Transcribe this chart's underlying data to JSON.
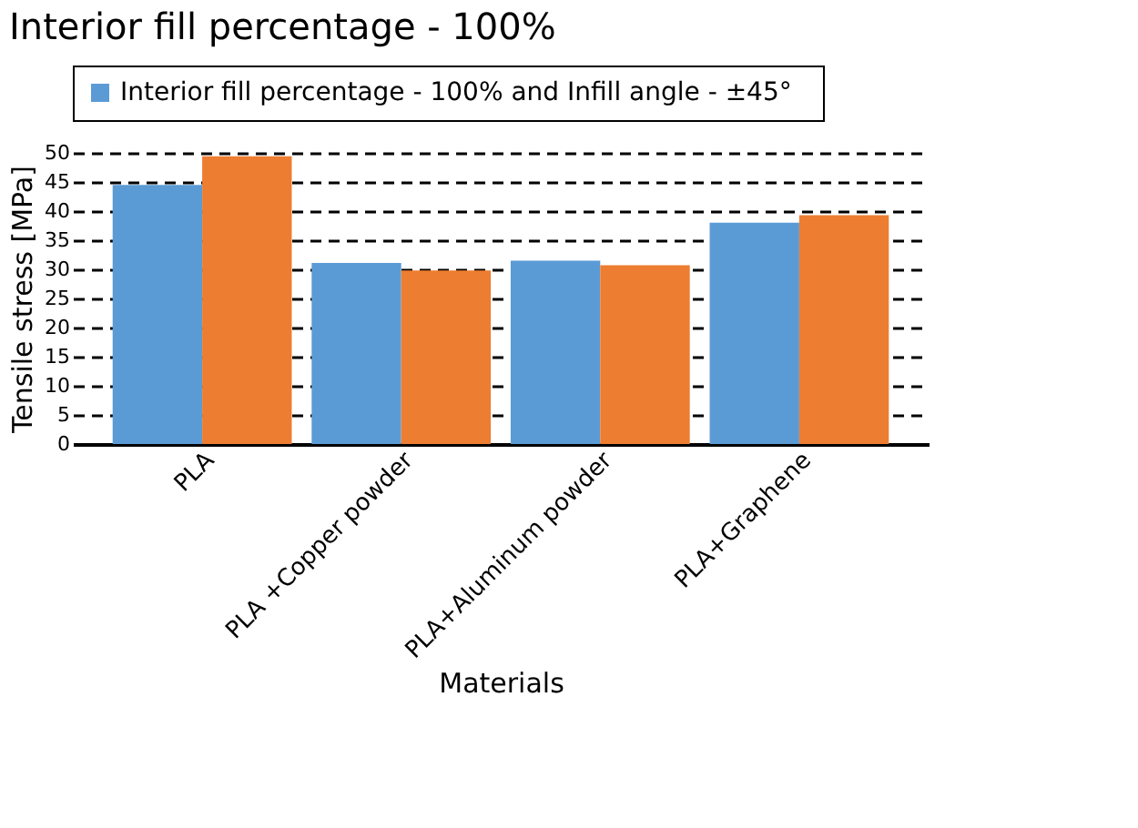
{
  "chart_data": {
    "type": "bar",
    "title": "Interior fill percentage - 100%",
    "xlabel": "Materials",
    "ylabel": "Tensile stress [MPa]",
    "categories": [
      "PLA",
      "PLA +Copper powder",
      "PLA+Aluminum powder",
      "PLA+Graphene"
    ],
    "series": [
      {
        "name": "Interior fill percentage - 100%   and Infill angle - ±45°",
        "color": "#5b9bd5",
        "values": [
          44.5,
          31.1,
          31.5,
          38.0
        ]
      },
      {
        "color": "#ed7d31",
        "values": [
          49.4,
          29.8,
          30.7,
          39.3
        ]
      }
    ],
    "ylim": [
      0,
      50
    ],
    "yticks": [
      0,
      5,
      10,
      15,
      20,
      25,
      30,
      35,
      40,
      45,
      50
    ],
    "grid": "y",
    "legend": "top"
  }
}
